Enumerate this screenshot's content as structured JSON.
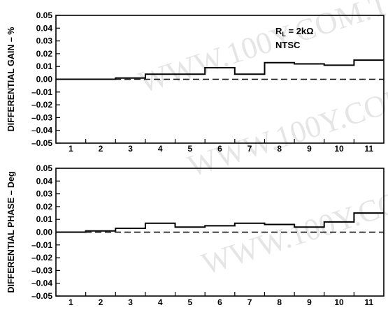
{
  "watermark": "WWW.100Y.COM.TW",
  "annotation": {
    "rl_prefix": "R",
    "rl_sub": "L",
    "rl_value": " = 2kΩ",
    "standard": "NTSC"
  },
  "chart_data": [
    {
      "type": "line",
      "step": true,
      "ylabel": "DIFFERENTIAL GAIN – %",
      "xlabel": "",
      "categories": [
        "1",
        "2",
        "3",
        "4",
        "5",
        "6",
        "7",
        "8",
        "9",
        "10",
        "11"
      ],
      "yticks": [
        "0.05",
        "0.04",
        "0.03",
        "0.02",
        "0.01",
        "0.00",
        "–0.01",
        "–0.02",
        "–0.03",
        "–0.04",
        "–0.05"
      ],
      "ylim": [
        -0.05,
        0.05
      ],
      "values": [
        0.0,
        0.0,
        0.001,
        0.004,
        0.004,
        0.009,
        0.004,
        0.013,
        0.012,
        0.011,
        0.015
      ],
      "reference_line": 0.0,
      "grid": false
    },
    {
      "type": "line",
      "step": true,
      "ylabel": "DIFFERENTIAL PHASE – Deg",
      "xlabel": "",
      "categories": [
        "1",
        "2",
        "3",
        "4",
        "5",
        "6",
        "7",
        "8",
        "9",
        "10",
        "11"
      ],
      "yticks": [
        "0.05",
        "0.04",
        "0.03",
        "0.02",
        "0.01",
        "0.00",
        "–0.01",
        "–0.02",
        "–0.03",
        "–0.04",
        "–0.05"
      ],
      "ylim": [
        -0.05,
        0.05
      ],
      "values": [
        0.0,
        0.001,
        0.003,
        0.007,
        0.004,
        0.005,
        0.007,
        0.006,
        0.004,
        0.008,
        0.015
      ],
      "reference_line": 0.0,
      "grid": false
    }
  ]
}
